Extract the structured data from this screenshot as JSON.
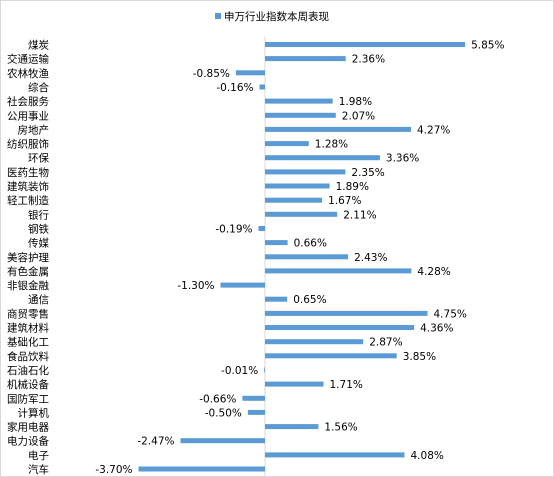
{
  "chart_data": {
    "type": "bar",
    "orientation": "horizontal",
    "legend": {
      "position": "top",
      "label": "申万行业指数本周表现",
      "color": "#5b9bd5"
    },
    "categories": [
      "煤炭",
      "交通运输",
      "农林牧渔",
      "综合",
      "社会服务",
      "公用事业",
      "房地产",
      "纺织服饰",
      "环保",
      "医药生物",
      "建筑装饰",
      "轻工制造",
      "银行",
      "钢铁",
      "传媒",
      "美容护理",
      "有色金属",
      "非银金融",
      "通信",
      "商贸零售",
      "建筑材料",
      "基础化工",
      "食品饮料",
      "石油石化",
      "机械设备",
      "国防军工",
      "计算机",
      "家用电器",
      "电力设备",
      "电子",
      "汽车"
    ],
    "series": [
      {
        "name": "申万行业指数本周表现",
        "color": "#5b9bd5",
        "values": [
          5.85,
          2.36,
          -0.85,
          -0.16,
          1.98,
          2.07,
          4.27,
          1.28,
          3.36,
          2.35,
          1.89,
          1.67,
          2.11,
          -0.19,
          0.66,
          2.43,
          4.28,
          -1.3,
          0.65,
          4.75,
          4.36,
          2.87,
          3.85,
          -0.01,
          1.71,
          -0.66,
          -0.5,
          1.56,
          -2.47,
          4.08,
          -3.7
        ]
      }
    ],
    "value_labels": [
      "5.85%",
      "2.36%",
      "-0.85%",
      "-0.16%",
      "1.98%",
      "2.07%",
      "4.27%",
      "1.28%",
      "3.36%",
      "2.35%",
      "1.89%",
      "1.67%",
      "2.11%",
      "-0.19%",
      "0.66%",
      "2.43%",
      "4.28%",
      "-1.30%",
      "0.65%",
      "4.75%",
      "4.36%",
      "2.87%",
      "3.85%",
      "-0.01%",
      "1.71%",
      "-0.66%",
      "-0.50%",
      "1.56%",
      "-2.47%",
      "4.08%",
      "-3.70%"
    ],
    "value_unit": "%",
    "grid": false,
    "axis_color": "#d9d9d9"
  }
}
